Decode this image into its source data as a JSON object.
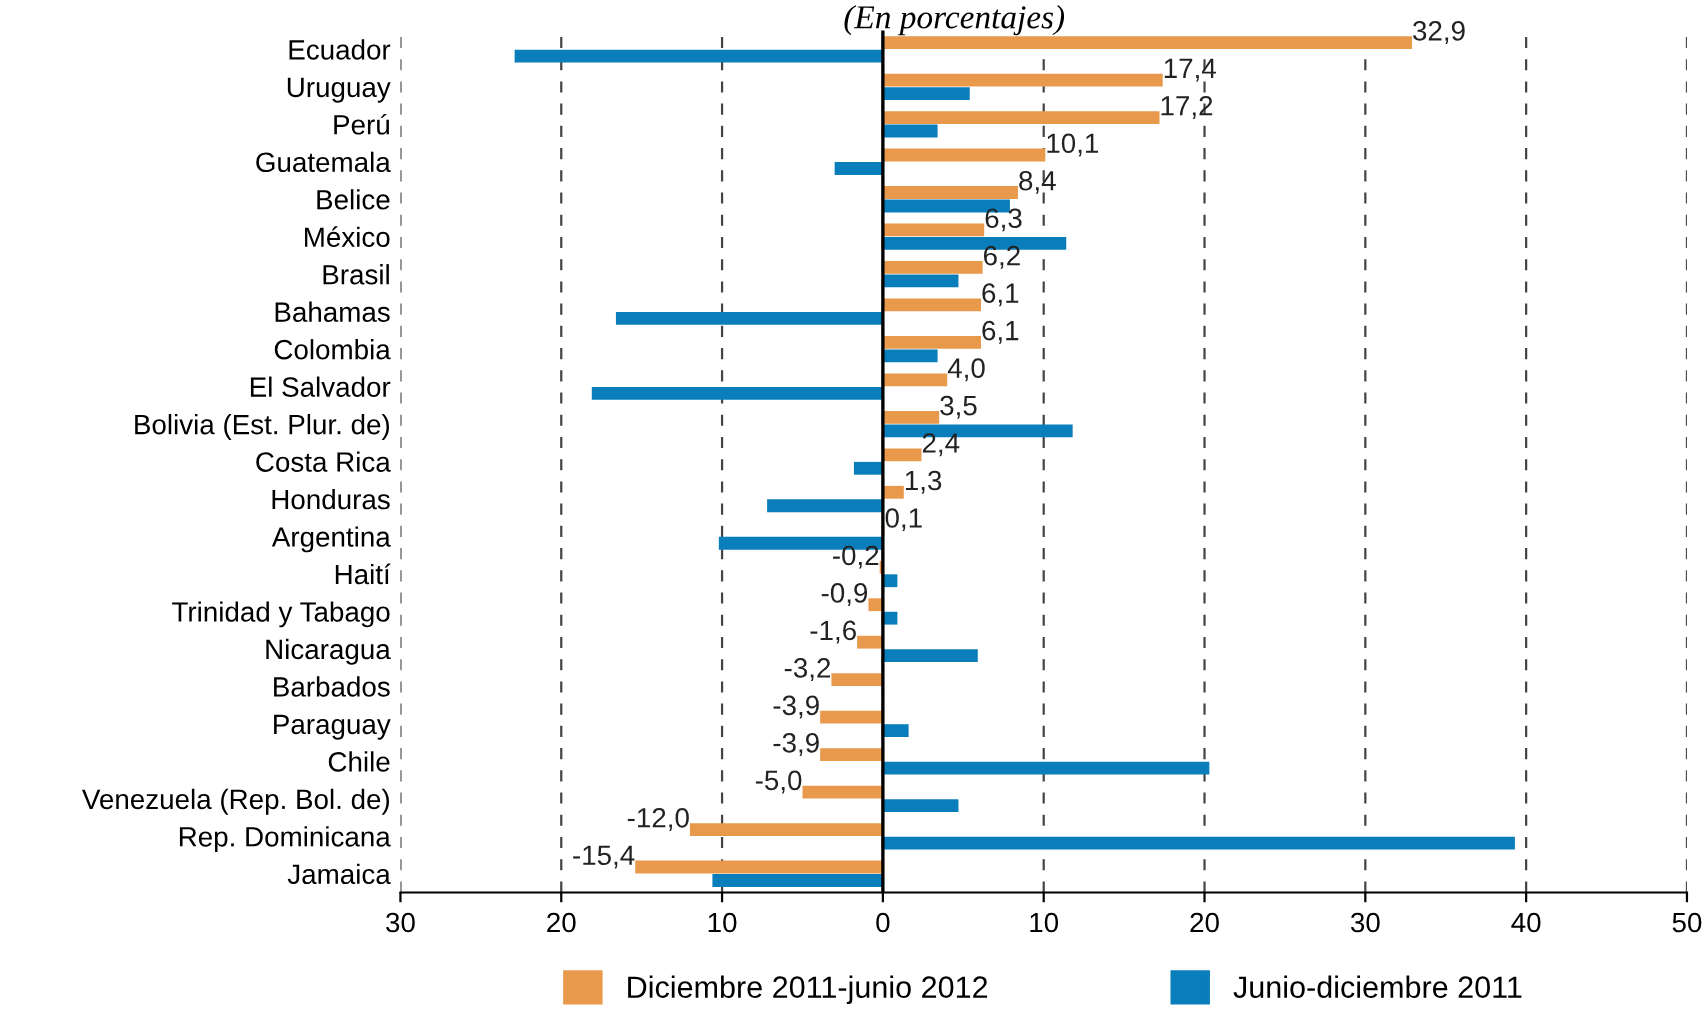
{
  "chart_data": {
    "type": "bar",
    "orientation": "horizontal",
    "title": "(En porcentajes)",
    "categories": [
      "Ecuador",
      "Uruguay",
      "Perú",
      "Guatemala",
      "Belice",
      "México",
      "Brasil",
      "Bahamas",
      "Colombia",
      "El Salvador",
      "Bolivia (Est. Plur. de)",
      "Costa Rica",
      "Honduras",
      "Argentina",
      "Haití",
      "Trinidad y Tabago",
      "Nicaragua",
      "Barbados",
      "Paraguay",
      "Chile",
      "Venezuela (Rep. Bol. de)",
      "Rep. Dominicana",
      "Jamaica"
    ],
    "series": [
      {
        "name": "Diciembre 2011-junio 2012",
        "color": "#e8994b",
        "values": [
          32.9,
          17.4,
          17.2,
          10.1,
          8.4,
          6.3,
          6.2,
          6.1,
          6.1,
          4.0,
          3.5,
          2.4,
          1.3,
          0.1,
          -0.2,
          -0.9,
          -1.6,
          -3.2,
          -3.9,
          -3.9,
          -5.0,
          -12.0,
          -15.4
        ],
        "value_labels": [
          "32,9",
          "17,4",
          "17,2",
          "10,1",
          "8,4",
          "6,3",
          "6,2",
          "6,1",
          "6,1",
          "4,0",
          "3,5",
          "2,4",
          "1,3",
          "0,1",
          "-0,2",
          "-0,9",
          "-1,6",
          "-3,2",
          "-3,9",
          "-3,9",
          "-5,0",
          "-12,0",
          "-15,4"
        ]
      },
      {
        "name": "Junio-diciembre 2011",
        "color": "#0a7dbb",
        "values": [
          -22.9,
          5.4,
          3.4,
          -3.0,
          7.9,
          11.4,
          4.7,
          -16.6,
          3.4,
          -18.1,
          11.8,
          -1.8,
          -7.2,
          -10.2,
          0.9,
          0.9,
          5.9,
          null,
          1.6,
          20.3,
          4.7,
          39.3,
          -10.6
        ]
      }
    ],
    "xlim": [
      -30,
      50
    ],
    "xticks": [
      {
        "value": -30,
        "label": "30"
      },
      {
        "value": -20,
        "label": "20"
      },
      {
        "value": -10,
        "label": "10"
      },
      0,
      10,
      20,
      30,
      40,
      50
    ],
    "grid": "x",
    "legend": "bottom"
  }
}
